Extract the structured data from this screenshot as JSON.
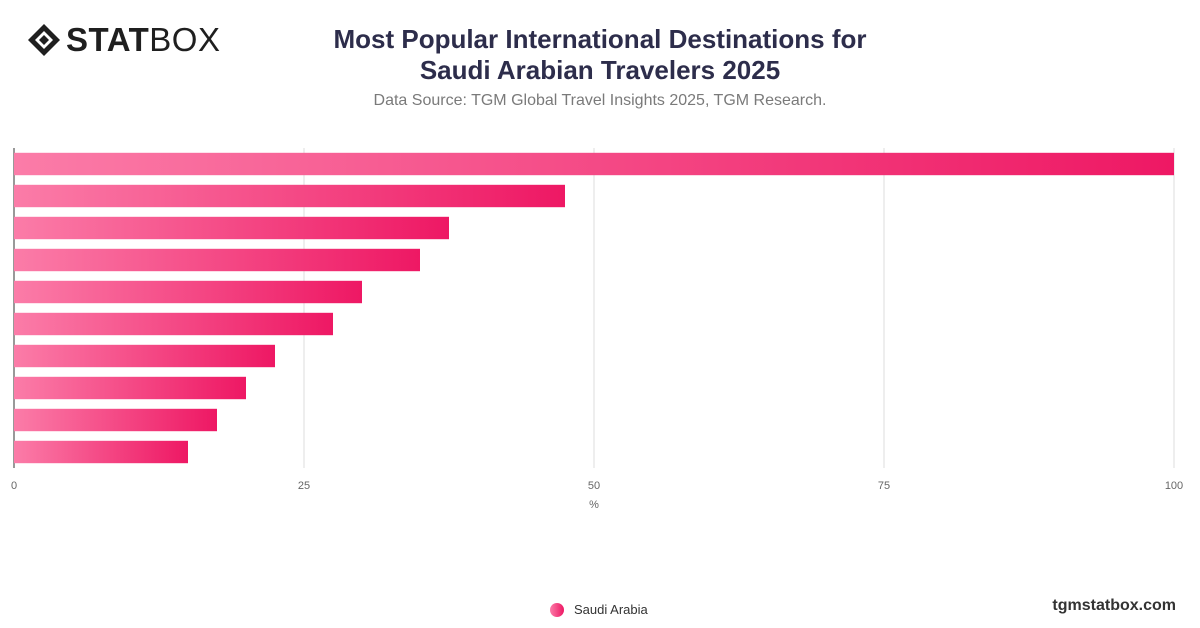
{
  "header": {
    "logo_bold": "STAT",
    "logo_light": "BOX",
    "title": "Most Popular International Destinations for Saudi Arabian Travelers 2025",
    "subtitle": "Data Source: TGM Global Travel Insights 2025, TGM Research."
  },
  "footer": {
    "brand": "tgmstatbox.com"
  },
  "colors": {
    "bar_start": "#fb7ca8",
    "bar_end": "#ee1864",
    "grid": "#dddddd",
    "axis": "#333333"
  },
  "chart_data": {
    "type": "bar",
    "orientation": "horizontal",
    "xlabel": "%",
    "xlim": [
      0,
      100
    ],
    "xticks": [
      0,
      25,
      50,
      75,
      100
    ],
    "grid": true,
    "legend_position": "bottom",
    "series": [
      {
        "name": "Saudi Arabia",
        "values": [
          100,
          47.5,
          37.5,
          35,
          30,
          27.5,
          22.5,
          20,
          17.5,
          15
        ]
      }
    ]
  }
}
